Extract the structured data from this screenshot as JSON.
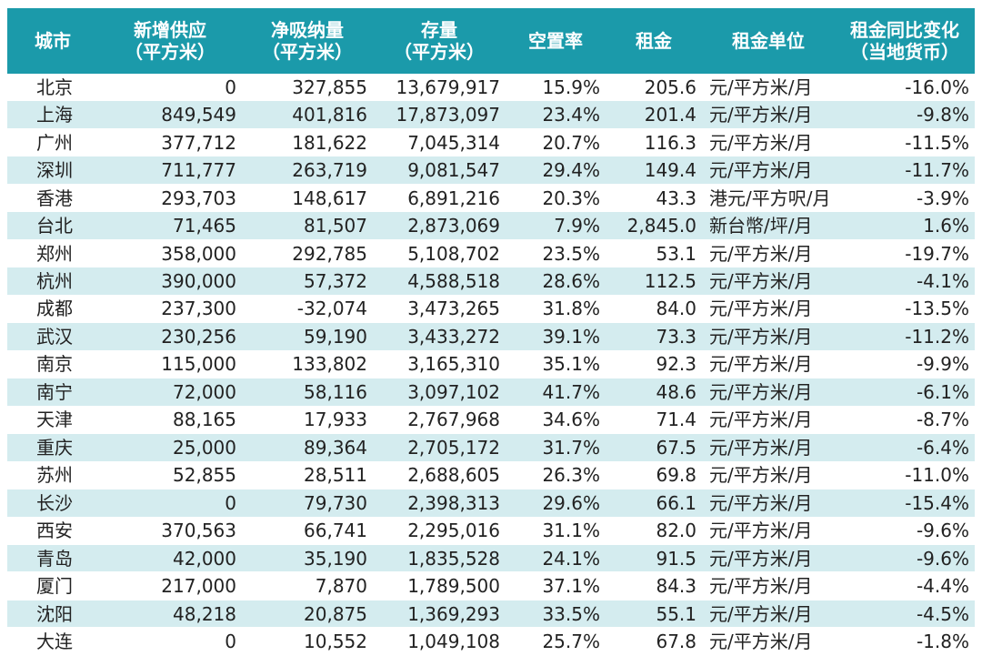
{
  "chart_data": {
    "type": "table",
    "columns": [
      {
        "key": "city",
        "line1": "城市",
        "line2": ""
      },
      {
        "key": "new_supply",
        "line1": "新增供应",
        "line2": "（平方米）"
      },
      {
        "key": "net_absorption",
        "line1": "净吸纳量",
        "line2": "（平方米）"
      },
      {
        "key": "stock",
        "line1": "存量",
        "line2": "（平方米）"
      },
      {
        "key": "vacancy",
        "line1": "空置率",
        "line2": ""
      },
      {
        "key": "rent",
        "line1": "租金",
        "line2": ""
      },
      {
        "key": "rent_unit",
        "line1": "租金单位",
        "line2": ""
      },
      {
        "key": "rent_yoy",
        "line1": "租金同比变化",
        "line2": "（当地货币）"
      }
    ],
    "rows": [
      {
        "city": "北京",
        "new_supply": "0",
        "net_absorption": "327,855",
        "stock": "13,679,917",
        "vacancy": "15.9%",
        "rent": "205.6",
        "rent_unit": "元/平方米/月",
        "rent_yoy": "-16.0%"
      },
      {
        "city": "上海",
        "new_supply": "849,549",
        "net_absorption": "401,816",
        "stock": "17,873,097",
        "vacancy": "23.4%",
        "rent": "201.4",
        "rent_unit": "元/平方米/月",
        "rent_yoy": "-9.8%"
      },
      {
        "city": "广州",
        "new_supply": "377,712",
        "net_absorption": "181,622",
        "stock": "7,045,314",
        "vacancy": "20.7%",
        "rent": "116.3",
        "rent_unit": "元/平方米/月",
        "rent_yoy": "-11.5%"
      },
      {
        "city": "深圳",
        "new_supply": "711,777",
        "net_absorption": "263,719",
        "stock": "9,081,547",
        "vacancy": "29.4%",
        "rent": "149.4",
        "rent_unit": "元/平方米/月",
        "rent_yoy": "-11.7%"
      },
      {
        "city": "香港",
        "new_supply": "293,703",
        "net_absorption": "148,617",
        "stock": "6,891,216",
        "vacancy": "20.3%",
        "rent": "43.3",
        "rent_unit": "港元/平方呎/月",
        "rent_yoy": "-3.9%"
      },
      {
        "city": "台北",
        "new_supply": "71,465",
        "net_absorption": "81,507",
        "stock": "2,873,069",
        "vacancy": "7.9%",
        "rent": "2,845.0",
        "rent_unit": "新台幣/坪/月",
        "rent_yoy": "1.6%"
      },
      {
        "city": "郑州",
        "new_supply": "358,000",
        "net_absorption": "292,785",
        "stock": "5,108,702",
        "vacancy": "23.5%",
        "rent": "53.1",
        "rent_unit": "元/平方米/月",
        "rent_yoy": "-19.7%"
      },
      {
        "city": "杭州",
        "new_supply": "390,000",
        "net_absorption": "57,372",
        "stock": "4,588,518",
        "vacancy": "28.6%",
        "rent": "112.5",
        "rent_unit": "元/平方米/月",
        "rent_yoy": "-4.1%"
      },
      {
        "city": "成都",
        "new_supply": "237,300",
        "net_absorption": "-32,074",
        "stock": "3,473,265",
        "vacancy": "31.8%",
        "rent": "84.0",
        "rent_unit": "元/平方米/月",
        "rent_yoy": "-13.5%"
      },
      {
        "city": "武汉",
        "new_supply": "230,256",
        "net_absorption": "59,190",
        "stock": "3,433,272",
        "vacancy": "39.1%",
        "rent": "73.3",
        "rent_unit": "元/平方米/月",
        "rent_yoy": "-11.2%"
      },
      {
        "city": "南京",
        "new_supply": "115,000",
        "net_absorption": "133,802",
        "stock": "3,165,310",
        "vacancy": "35.1%",
        "rent": "92.3",
        "rent_unit": "元/平方米/月",
        "rent_yoy": "-9.9%"
      },
      {
        "city": "南宁",
        "new_supply": "72,000",
        "net_absorption": "58,116",
        "stock": "3,097,102",
        "vacancy": "41.7%",
        "rent": "48.6",
        "rent_unit": "元/平方米/月",
        "rent_yoy": "-6.1%"
      },
      {
        "city": "天津",
        "new_supply": "88,165",
        "net_absorption": "17,933",
        "stock": "2,767,968",
        "vacancy": "34.6%",
        "rent": "71.4",
        "rent_unit": "元/平方米/月",
        "rent_yoy": "-8.7%"
      },
      {
        "city": "重庆",
        "new_supply": "25,000",
        "net_absorption": "89,364",
        "stock": "2,705,172",
        "vacancy": "31.7%",
        "rent": "67.5",
        "rent_unit": "元/平方米/月",
        "rent_yoy": "-6.4%"
      },
      {
        "city": "苏州",
        "new_supply": "52,855",
        "net_absorption": "28,511",
        "stock": "2,688,605",
        "vacancy": "26.3%",
        "rent": "69.8",
        "rent_unit": "元/平方米/月",
        "rent_yoy": "-11.0%"
      },
      {
        "city": "长沙",
        "new_supply": "0",
        "net_absorption": "79,730",
        "stock": "2,398,313",
        "vacancy": "29.6%",
        "rent": "66.1",
        "rent_unit": "元/平方米/月",
        "rent_yoy": "-15.4%"
      },
      {
        "city": "西安",
        "new_supply": "370,563",
        "net_absorption": "66,741",
        "stock": "2,295,016",
        "vacancy": "31.1%",
        "rent": "82.0",
        "rent_unit": "元/平方米/月",
        "rent_yoy": "-9.6%"
      },
      {
        "city": "青岛",
        "new_supply": "42,000",
        "net_absorption": "35,190",
        "stock": "1,835,528",
        "vacancy": "24.1%",
        "rent": "91.5",
        "rent_unit": "元/平方米/月",
        "rent_yoy": "-9.6%"
      },
      {
        "city": "厦门",
        "new_supply": "217,000",
        "net_absorption": "7,870",
        "stock": "1,789,500",
        "vacancy": "37.1%",
        "rent": "84.3",
        "rent_unit": "元/平方米/月",
        "rent_yoy": "-4.4%"
      },
      {
        "city": "沈阳",
        "new_supply": "48,218",
        "net_absorption": "20,875",
        "stock": "1,369,293",
        "vacancy": "33.5%",
        "rent": "55.1",
        "rent_unit": "元/平方米/月",
        "rent_yoy": "-4.5%"
      },
      {
        "city": "大连",
        "new_supply": "0",
        "net_absorption": "10,552",
        "stock": "1,049,108",
        "vacancy": "25.7%",
        "rent": "67.8",
        "rent_unit": "元/平方米/月",
        "rent_yoy": "-1.8%"
      }
    ]
  },
  "style": {
    "header_bg": "#1b9aaa",
    "header_text": "#ffffff",
    "row_alt_bg": "#d4ecef",
    "row_bg": "#ffffff",
    "text": "#222222"
  }
}
